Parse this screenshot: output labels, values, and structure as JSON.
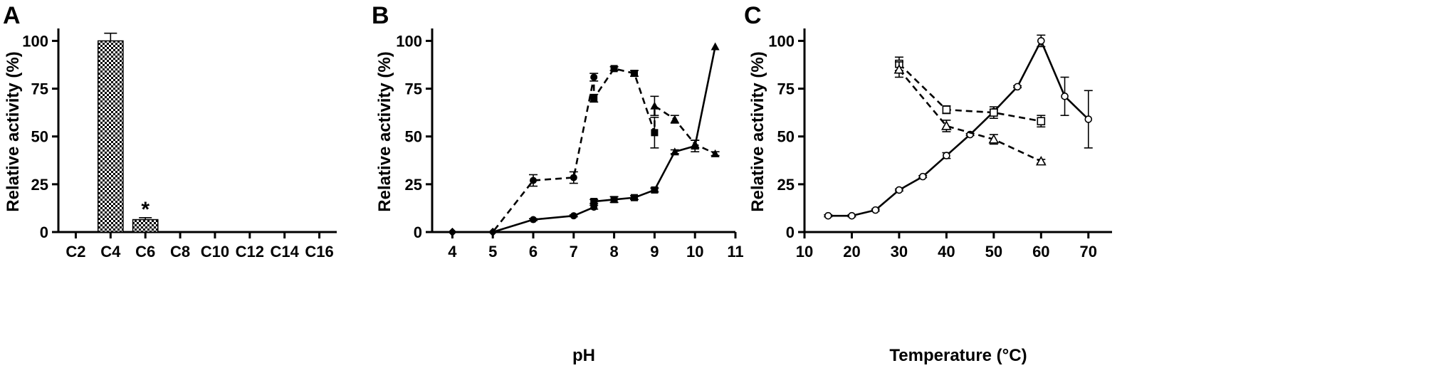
{
  "chart_data": [
    {
      "panel": "A",
      "type": "bar",
      "ylabel": "Relative activity (%)",
      "xlabel": "",
      "categories": [
        "C2",
        "C4",
        "C6",
        "C8",
        "C10",
        "C12",
        "C14",
        "C16"
      ],
      "values": [
        0,
        100,
        6.5,
        0,
        0,
        0,
        0,
        0
      ],
      "errors": [
        0,
        4,
        1,
        0,
        0,
        0,
        0,
        0
      ],
      "annotations": [
        {
          "category": "C6",
          "text": "*"
        }
      ],
      "ylim": [
        0,
        105
      ],
      "yticks": [
        0,
        25,
        50,
        75,
        100
      ],
      "bar_pattern": "checkered",
      "grid": false
    },
    {
      "panel": "B",
      "type": "line",
      "xlabel": "pH",
      "ylabel": "Relative activity (%)",
      "xlim": [
        3.5,
        11
      ],
      "ylim": [
        0,
        105
      ],
      "xticks": [
        4,
        5,
        6,
        7,
        8,
        9,
        10,
        11
      ],
      "yticks": [
        0,
        25,
        50,
        75,
        100
      ],
      "grid": false,
      "series": [
        {
          "style": "dashed",
          "points": [
            {
              "x": 4,
              "y": 0,
              "err": 0,
              "marker": "diamond"
            },
            {
              "x": 5,
              "y": 0,
              "err": 0,
              "marker": "diamond"
            },
            {
              "x": 6,
              "y": 27,
              "err": 3,
              "marker": "circle"
            },
            {
              "x": 7,
              "y": 28.5,
              "err": 3,
              "marker": "circle"
            },
            {
              "x": 7.5,
              "y": 81,
              "err": 2,
              "marker": "circle"
            },
            {
              "x": 7.5,
              "y": 70,
              "err": 2,
              "marker": "square"
            },
            {
              "x": 8,
              "y": 85.5,
              "err": 1,
              "marker": "square"
            },
            {
              "x": 8.5,
              "y": 83,
              "err": 1.5,
              "marker": "square"
            },
            {
              "x": 9,
              "y": 52,
              "err": 8,
              "marker": "square"
            },
            {
              "x": 9,
              "y": 66,
              "err": 5,
              "marker": "triangle"
            },
            {
              "x": 9.5,
              "y": 59,
              "err": 2,
              "marker": "triangle"
            },
            {
              "x": 10,
              "y": 46,
              "err": 2,
              "marker": "triangle"
            },
            {
              "x": 10.5,
              "y": 41,
              "err": 1,
              "marker": "triangle"
            }
          ]
        },
        {
          "style": "solid",
          "points": [
            {
              "x": 4,
              "y": 0,
              "err": 0,
              "marker": "diamond"
            },
            {
              "x": 5,
              "y": 0,
              "err": 0,
              "marker": "diamond"
            },
            {
              "x": 6,
              "y": 6.5,
              "err": 0.5,
              "marker": "circle"
            },
            {
              "x": 7,
              "y": 8.5,
              "err": 0.5,
              "marker": "circle"
            },
            {
              "x": 7.5,
              "y": 13,
              "err": 1,
              "marker": "circle"
            },
            {
              "x": 7.5,
              "y": 16,
              "err": 1,
              "marker": "square"
            },
            {
              "x": 8,
              "y": 17,
              "err": 1.5,
              "marker": "square"
            },
            {
              "x": 8.5,
              "y": 18,
              "err": 1,
              "marker": "square"
            },
            {
              "x": 9,
              "y": 22,
              "err": 1,
              "marker": "square"
            },
            {
              "x": 9.5,
              "y": 42,
              "err": 1,
              "marker": "triangle"
            },
            {
              "x": 10,
              "y": 45,
              "err": 3,
              "marker": "triangle"
            },
            {
              "x": 10.5,
              "y": 97,
              "err": 0,
              "marker": "triangle"
            }
          ]
        }
      ]
    },
    {
      "panel": "C",
      "type": "line",
      "xlabel": "Temperature (°C)",
      "ylabel": "Relative activity (%)",
      "xlim": [
        10,
        75
      ],
      "ylim": [
        0,
        105
      ],
      "xticks": [
        10,
        20,
        30,
        40,
        50,
        60,
        70
      ],
      "yticks": [
        0,
        25,
        50,
        75,
        100
      ],
      "grid": false,
      "series": [
        {
          "style": "solid",
          "marker": "open-circle",
          "points": [
            {
              "x": 15,
              "y": 8.5,
              "err": 0.5
            },
            {
              "x": 20,
              "y": 8.5,
              "err": 0.5
            },
            {
              "x": 25,
              "y": 11.5,
              "err": 0.5
            },
            {
              "x": 30,
              "y": 22,
              "err": 0.5
            },
            {
              "x": 35,
              "y": 29,
              "err": 0.5
            },
            {
              "x": 40,
              "y": 40,
              "err": 1.5
            },
            {
              "x": 45,
              "y": 51,
              "err": 0.5
            },
            {
              "x": 50,
              "y": 63,
              "err": 1
            },
            {
              "x": 55,
              "y": 76,
              "err": 0.5
            },
            {
              "x": 60,
              "y": 100,
              "err": 3
            },
            {
              "x": 65,
              "y": 71,
              "err": 10
            },
            {
              "x": 70,
              "y": 59,
              "err": 15
            }
          ]
        },
        {
          "style": "dashed",
          "marker": "open-square",
          "points": [
            {
              "x": 30,
              "y": 88,
              "err": 3.5
            },
            {
              "x": 40,
              "y": 64,
              "err": 2
            },
            {
              "x": 50,
              "y": 62.5,
              "err": 3
            },
            {
              "x": 60,
              "y": 58,
              "err": 3
            }
          ]
        },
        {
          "style": "dashed",
          "marker": "open-triangle",
          "points": [
            {
              "x": 30,
              "y": 85,
              "err": 4
            },
            {
              "x": 40,
              "y": 55.5,
              "err": 3
            },
            {
              "x": 50,
              "y": 48.5,
              "err": 2.5
            },
            {
              "x": 60,
              "y": 37,
              "err": 1
            }
          ]
        }
      ]
    }
  ]
}
